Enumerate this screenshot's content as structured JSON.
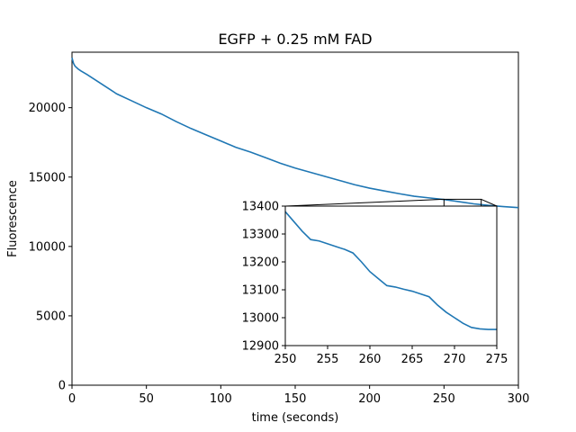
{
  "chart_data": [
    {
      "type": "line",
      "title": "EGFP + 0.25 mM FAD",
      "xlabel": "time (seconds)",
      "ylabel": "Fluorescence",
      "xlim": [
        0,
        300
      ],
      "ylim": [
        0,
        24000
      ],
      "xticks": [
        0,
        50,
        100,
        150,
        200,
        250,
        300
      ],
      "yticks": [
        0,
        5000,
        10000,
        15000,
        20000
      ],
      "grid": false,
      "series_color": "#1f77b4",
      "series": [
        {
          "x": [
            0,
            1,
            2,
            4,
            6,
            10,
            15,
            20,
            25,
            30,
            40,
            50,
            60,
            70,
            80,
            90,
            100,
            110,
            120,
            130,
            140,
            150,
            160,
            170,
            180,
            190,
            200,
            210,
            220,
            230,
            240,
            250,
            260,
            270,
            280,
            290,
            300
          ],
          "y": [
            23600,
            23200,
            23000,
            22800,
            22650,
            22400,
            22050,
            21700,
            21350,
            21000,
            20500,
            20000,
            19550,
            19000,
            18500,
            18050,
            17600,
            17150,
            16800,
            16400,
            16000,
            15650,
            15350,
            15050,
            14750,
            14450,
            14200,
            14000,
            13800,
            13620,
            13500,
            13380,
            13230,
            13070,
            12960,
            12870,
            12800
          ]
        }
      ]
    },
    {
      "type": "line",
      "title": "",
      "xlabel": "",
      "ylabel": "",
      "xlim": [
        250,
        275
      ],
      "ylim": [
        12900,
        13400
      ],
      "xticks": [
        250,
        255,
        260,
        265,
        270,
        275
      ],
      "yticks": [
        12900,
        13000,
        13100,
        13200,
        13300,
        13400
      ],
      "grid": false,
      "placement": "lower-right inset of main chart",
      "series_color": "#1f77b4",
      "series": [
        {
          "x": [
            250,
            251,
            252,
            253,
            254,
            255,
            256,
            257,
            258,
            259,
            260,
            261,
            262,
            263,
            264,
            265,
            266,
            267,
            268,
            269,
            270,
            271,
            272,
            273,
            274,
            275
          ],
          "y": [
            13380,
            13345,
            13310,
            13280,
            13275,
            13265,
            13255,
            13245,
            13232,
            13200,
            13165,
            13140,
            13115,
            13110,
            13102,
            13095,
            13085,
            13075,
            13045,
            13020,
            13000,
            12980,
            12965,
            12960,
            12958,
            12958
          ]
        }
      ]
    }
  ]
}
